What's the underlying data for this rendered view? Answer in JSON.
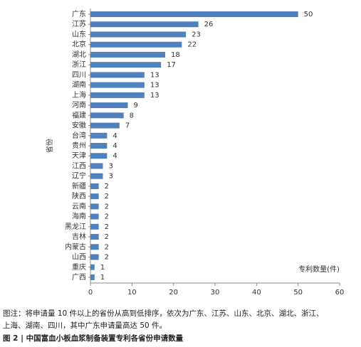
{
  "chart_data": {
    "type": "barh",
    "x_label": "专利数量(件)",
    "y_label": "省份",
    "categories": [
      "广东",
      "江苏",
      "山东",
      "北京",
      "湖北",
      "浙江",
      "四川",
      "湖南",
      "上海",
      "河南",
      "福建",
      "安徽",
      "台湾",
      "贵州",
      "天津",
      "江西",
      "辽宁",
      "新疆",
      "陕西",
      "云南",
      "海南",
      "黑龙江",
      "吉林",
      "内蒙古",
      "山西",
      "重庆",
      "广西"
    ],
    "values": [
      50,
      26,
      23,
      22,
      18,
      17,
      13,
      13,
      13,
      9,
      8,
      7,
      4,
      4,
      4,
      3,
      3,
      2,
      2,
      2,
      2,
      2,
      2,
      2,
      2,
      1,
      1
    ],
    "color": "#4f81bd",
    "xlim": [
      0,
      60
    ],
    "xticks": [
      0,
      10,
      20,
      30,
      40,
      50,
      60
    ],
    "annotations": [
      "图注：将申请量 10 件以上的省份从高到低排序，依次为广东、江苏、山东、北京、湖北、浙江、",
      "上海、湖南、四川，其中广东申请量高达 50 件。"
    ],
    "figure_title": "图 2  |  中国富血小板血浆制备装置专利各省份申请数量"
  }
}
